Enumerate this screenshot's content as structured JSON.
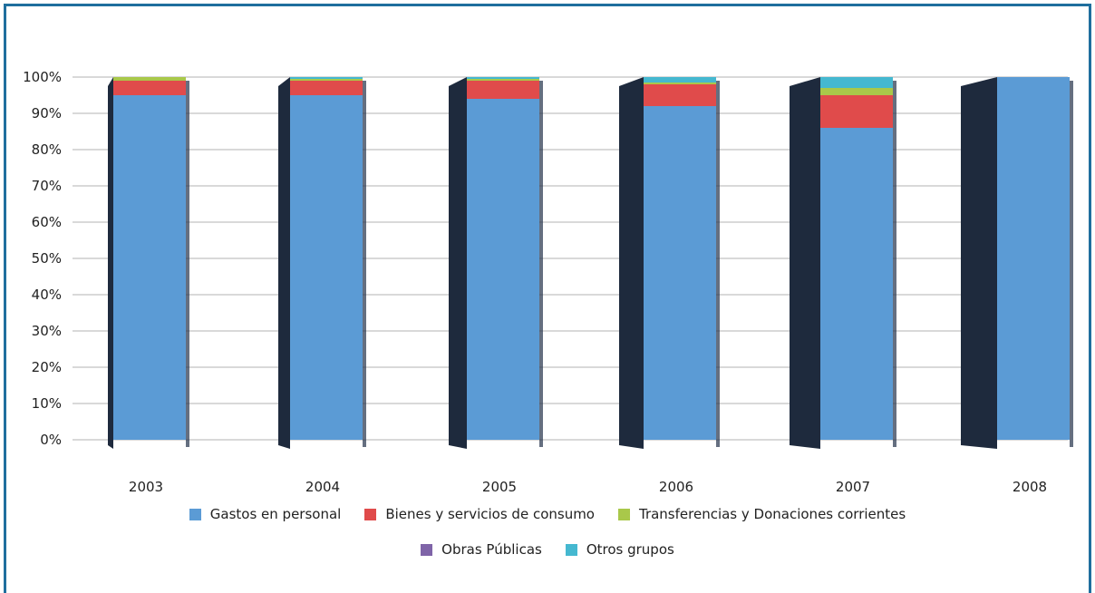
{
  "chart_data": {
    "type": "bar",
    "stacked": true,
    "percent": true,
    "categories": [
      "2003",
      "2004",
      "2005",
      "2006",
      "2007",
      "2008"
    ],
    "y_ticks": [
      "0%",
      "10%",
      "20%",
      "30%",
      "40%",
      "50%",
      "60%",
      "70%",
      "80%",
      "90%",
      "100%"
    ],
    "ylim": [
      0,
      100
    ],
    "grid": true,
    "legend_position": "bottom",
    "series": [
      {
        "name": "Gastos en personal",
        "color": "#5b9bd5",
        "values": [
          95,
          95,
          94,
          92,
          86,
          100
        ]
      },
      {
        "name": "Bienes y servicios de consumo",
        "color": "#e04b4b",
        "values": [
          4,
          4,
          5,
          6,
          9,
          0
        ]
      },
      {
        "name": "Transferencias y Donaciones corrientes",
        "color": "#a9c84a",
        "values": [
          1,
          0.5,
          0.5,
          0.5,
          2,
          0
        ]
      },
      {
        "name": "Obras Públicas",
        "color": "#7f64a8",
        "values": [
          0,
          0,
          0,
          0,
          0,
          0
        ]
      },
      {
        "name": "Otros grupos",
        "color": "#45b8d0",
        "values": [
          0,
          0.5,
          0.5,
          1.5,
          3,
          0
        ]
      }
    ]
  },
  "legend": {
    "row1": [
      "Gastos en personal",
      "Bienes y servicios de consumo",
      "Transferencias y Donaciones corrientes"
    ],
    "row2": [
      "Obras Públicas",
      "Otros grupos"
    ]
  }
}
